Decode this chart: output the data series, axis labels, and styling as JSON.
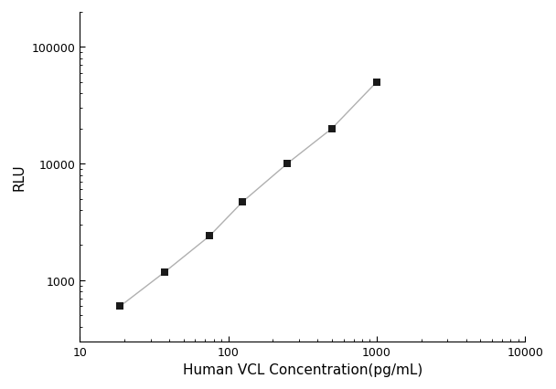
{
  "x_values": [
    18.75,
    37.5,
    75,
    125,
    250,
    500,
    1000
  ],
  "y_values": [
    600,
    1180,
    2400,
    4700,
    10000,
    20000,
    50000
  ],
  "marker": "s",
  "marker_color": "#1a1a1a",
  "marker_size": 6,
  "line_color": "#b0b0b0",
  "line_width": 1.0,
  "xlabel": "Human VCL Concentration(pg/mL)",
  "ylabel": "RLU",
  "xlim": [
    10,
    10000
  ],
  "ylim": [
    300,
    200000
  ],
  "x_ticks": [
    10,
    100,
    1000,
    10000
  ],
  "y_ticks": [
    1000,
    10000,
    100000
  ],
  "y_tick_labels": [
    "1000",
    "10000",
    "100000"
  ],
  "x_tick_labels": [
    "10",
    "100",
    "1000",
    "10000"
  ],
  "background_color": "#ffffff",
  "axes_color": "#000000",
  "xlabel_fontsize": 11,
  "ylabel_fontsize": 11,
  "tick_fontsize": 9,
  "spine_linewidth": 0.8
}
